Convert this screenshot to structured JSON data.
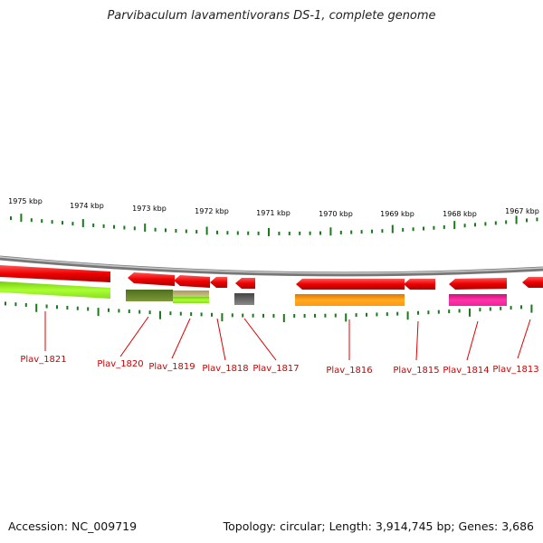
{
  "title": "Parvibaculum lavamentivorans DS-1, complete genome",
  "footer": {
    "accession": "Accession: NC_009719",
    "summary": "Topology: circular; Length: 3,914,745 bp; Genes: 3,686"
  },
  "scale_labels": [
    "1975 kbp",
    "1974 kbp",
    "1973 kbp",
    "1972 kbp",
    "1971 kbp",
    "1970 kbp",
    "1969 kbp",
    "1968 kbp",
    "1967 kbp"
  ],
  "gene_labels": [
    "Plav_1821",
    "Plav_1820",
    "Plav_1819",
    "Plav_1818",
    "Plav_1817",
    "Plav_1816",
    "Plav_1815",
    "Plav_1814",
    "Plav_1813"
  ],
  "colors": {
    "backbone": "#888888",
    "ticks": "#1a7a1a",
    "gene_arrow": "#ee1111",
    "label": "#cc0000",
    "bar_lime": "#99ee22",
    "bar_olive": "#6b8a2a",
    "bar_khaki": "#b8b070",
    "bar_grey": "#666666",
    "bar_orange": "#ff9911",
    "bar_magenta": "#ee2299"
  }
}
